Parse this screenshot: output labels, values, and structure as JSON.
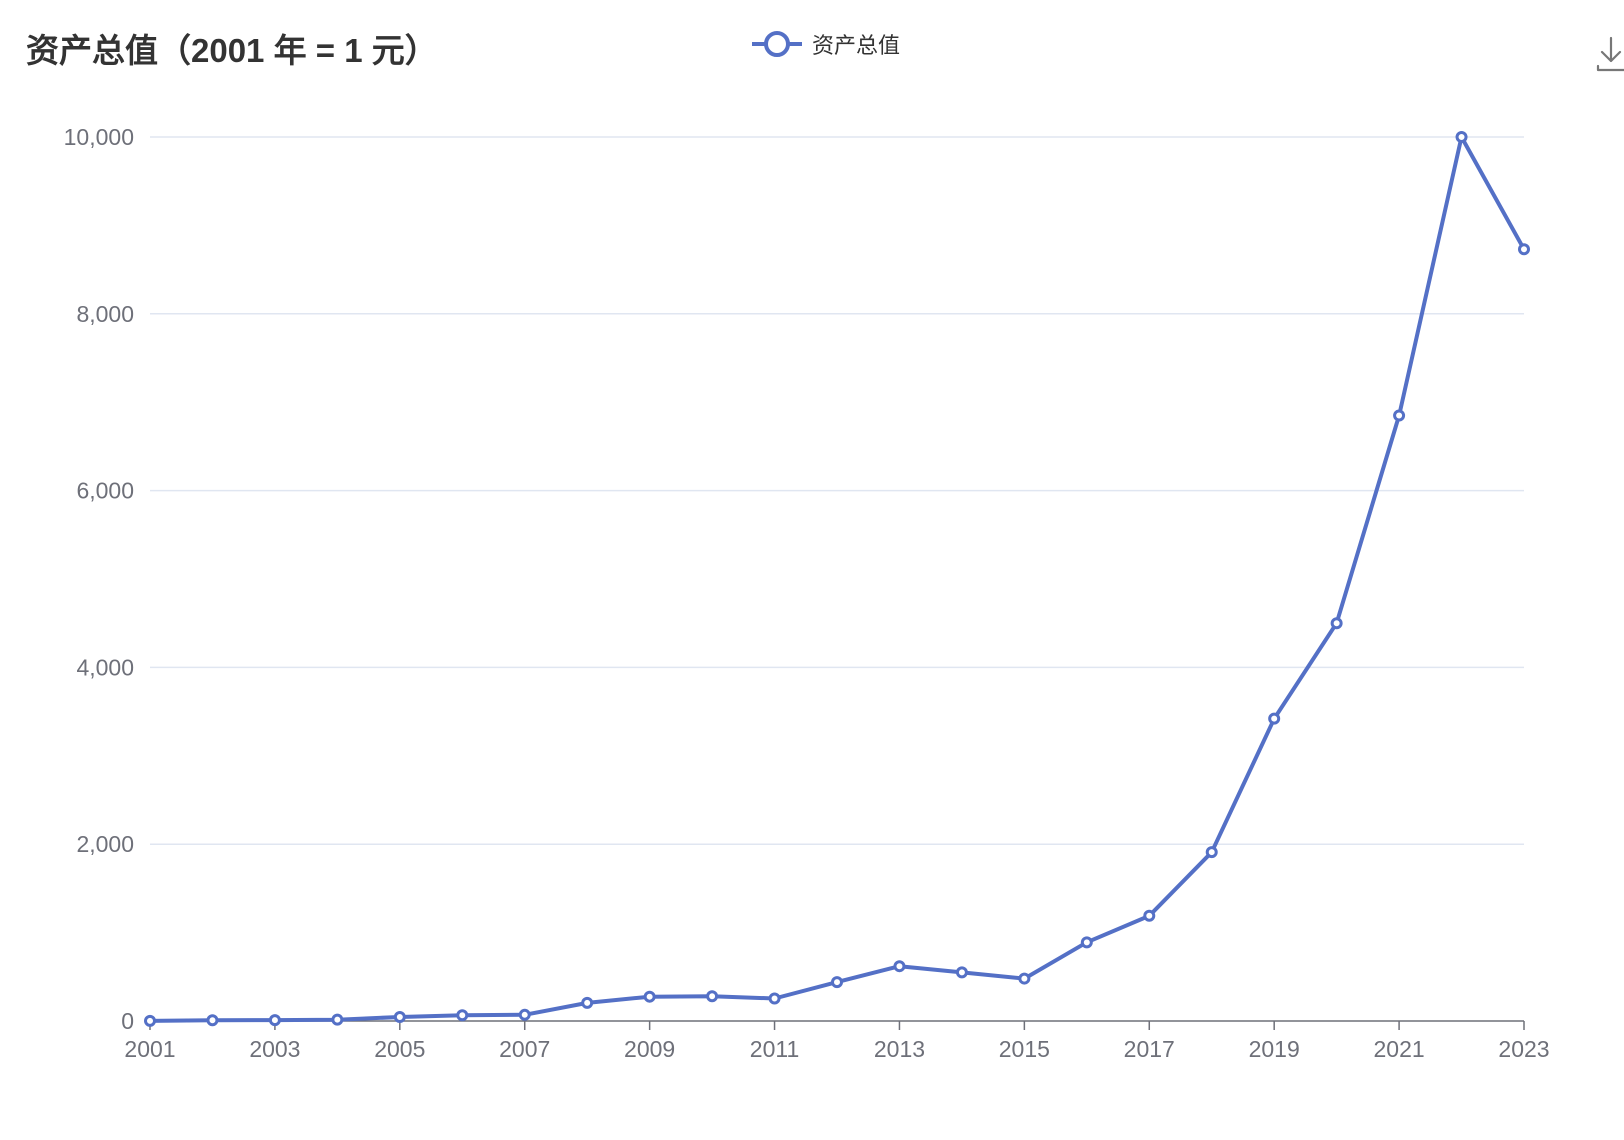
{
  "header": {
    "title": "资产总值（2001 年 = 1 元）"
  },
  "legend": {
    "label": "资产总值"
  },
  "toolbar": {
    "download_icon": "download-icon"
  },
  "colors": {
    "series": "#5470c6",
    "grid": "#e0e6f1",
    "axis": "#6e7079",
    "title": "#333333"
  },
  "chart_data": {
    "type": "line",
    "title": "资产总值（2001 年 = 1 元）",
    "x": [
      "2001",
      "2002",
      "2003",
      "2004",
      "2005",
      "2006",
      "2007",
      "2008",
      "2009",
      "2010",
      "2011",
      "2012",
      "2013",
      "2014",
      "2015",
      "2016",
      "2017",
      "2018",
      "2019",
      "2020",
      "2021",
      "2022",
      "2023"
    ],
    "x_tick_labels": [
      "2001",
      "2003",
      "2005",
      "2007",
      "2009",
      "2011",
      "2013",
      "2015",
      "2017",
      "2019",
      "2021",
      "2023"
    ],
    "series": [
      {
        "name": "资产总值",
        "values": [
          1,
          8,
          10,
          15,
          45,
          65,
          70,
          205,
          275,
          280,
          255,
          440,
          620,
          550,
          480,
          890,
          1190,
          1910,
          3420,
          4500,
          6850,
          10000,
          8730
        ]
      }
    ],
    "y_ticks": [
      0,
      2000,
      4000,
      6000,
      8000,
      10000
    ],
    "y_tick_labels": [
      "0",
      "2,000",
      "4,000",
      "6,000",
      "8,000",
      "10,000"
    ],
    "ylim": [
      0,
      10000
    ],
    "grid": true,
    "legend_position": "top-center",
    "marker": "hollow-circle"
  }
}
